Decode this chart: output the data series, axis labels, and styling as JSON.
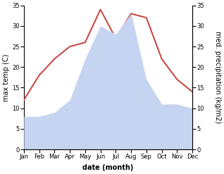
{
  "months": [
    "Jan",
    "Feb",
    "Mar",
    "Apr",
    "May",
    "Jun",
    "Jul",
    "Aug",
    "Sep",
    "Oct",
    "Nov",
    "Dec"
  ],
  "temperature": [
    12,
    18,
    22,
    25,
    26,
    34,
    27,
    33,
    32,
    22,
    17,
    14
  ],
  "precipitation": [
    8,
    8,
    9,
    12,
    22,
    30,
    28,
    33,
    17,
    11,
    11,
    10
  ],
  "temp_color": "#c8403a",
  "precip_color": "#c5d4f0",
  "ylim": [
    0,
    35
  ],
  "yticks": [
    0,
    5,
    10,
    15,
    20,
    25,
    30,
    35
  ],
  "ylabel_left": "max temp (C)",
  "ylabel_right": "med. precipitation (kg/m2)",
  "xlabel": "date (month)",
  "xlabel_fontsize": 7,
  "xlabel_fontweight": "bold",
  "ylabel_fontsize": 7,
  "tick_fontsize": 6,
  "line_width": 1.4,
  "background_color": "#ffffff",
  "spine_color": "#999999"
}
